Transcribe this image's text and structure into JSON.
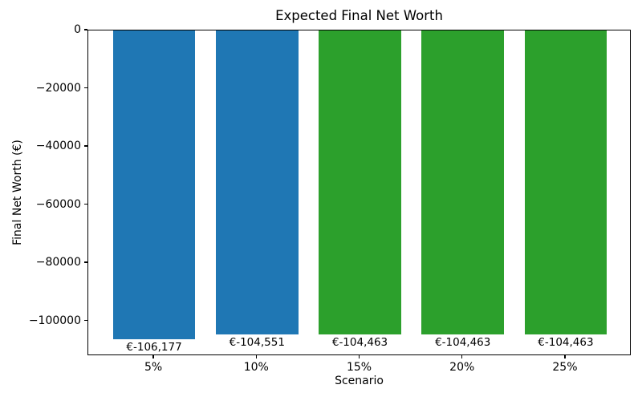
{
  "chart_data": {
    "type": "bar",
    "title": "Expected Final Net Worth",
    "xlabel": "Scenario",
    "ylabel": "Final Net Worth (€)",
    "categories": [
      "5%",
      "10%",
      "15%",
      "20%",
      "25%"
    ],
    "values": [
      -106177,
      -104551,
      -104463,
      -104463,
      -104463
    ],
    "bar_labels": [
      "€-106,177",
      "€-104,551",
      "€-104,463",
      "€-104,463",
      "€-104,463"
    ],
    "bar_colors": [
      "#1f77b4",
      "#1f77b4",
      "#2ca02c",
      "#2ca02c",
      "#2ca02c"
    ],
    "ylim": [
      -112000,
      0
    ],
    "xlim": [
      -0.64,
      4.64
    ],
    "bar_width": 0.8,
    "yticks": [
      0,
      -20000,
      -40000,
      -60000,
      -80000,
      -100000
    ],
    "ytick_labels": [
      "0",
      "−20000",
      "−40000",
      "−60000",
      "−80000",
      "−100000"
    ],
    "grid": false,
    "legend": null,
    "axis_color": "#000000",
    "text_color": "#000000",
    "background_color": "#ffffff"
  }
}
